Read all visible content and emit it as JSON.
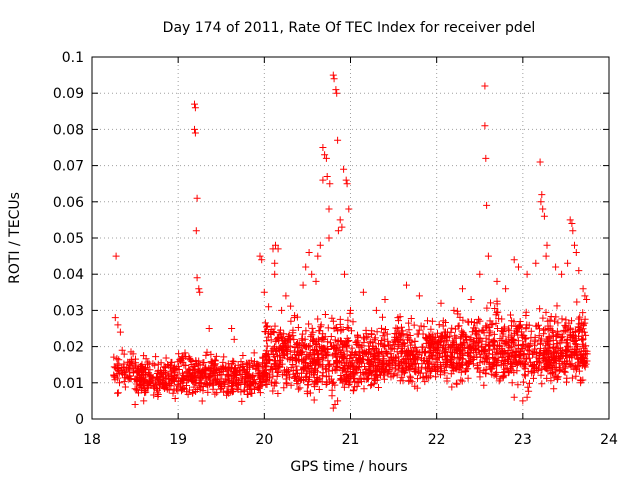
{
  "chart_data": {
    "type": "scatter",
    "title": "Day 174 of 2011, Rate Of TEC Index for receiver pdel",
    "xlabel": "GPS time / hours",
    "ylabel": "ROTI / TECUs",
    "xlim": [
      18,
      24
    ],
    "ylim": [
      0,
      0.1
    ],
    "xticks": [
      18,
      19,
      20,
      21,
      22,
      23,
      24
    ],
    "xtick_labels": [
      "18",
      "19",
      "20",
      "21",
      "22",
      "23",
      "24"
    ],
    "yticks": [
      0,
      0.01,
      0.02,
      0.03,
      0.04,
      0.05,
      0.06,
      0.07,
      0.08,
      0.09,
      0.1
    ],
    "ytick_labels": [
      "0",
      "0.01",
      "0.02",
      "0.03",
      "0.04",
      "0.05",
      "0.06",
      "0.07",
      "0.08",
      "0.09",
      "0.1"
    ],
    "grid": true,
    "marker": "+",
    "color": "#ff0000",
    "series": [
      {
        "name": "ROTI",
        "points": [
          [
            18.28,
            0.045
          ],
          [
            18.27,
            0.028
          ],
          [
            18.3,
            0.026
          ],
          [
            18.33,
            0.024
          ],
          [
            18.35,
            0.019
          ],
          [
            19.19,
            0.087
          ],
          [
            19.2,
            0.086
          ],
          [
            19.19,
            0.08
          ],
          [
            19.2,
            0.079
          ],
          [
            19.22,
            0.061
          ],
          [
            19.21,
            0.052
          ],
          [
            19.22,
            0.039
          ],
          [
            19.24,
            0.036
          ],
          [
            19.25,
            0.035
          ],
          [
            19.36,
            0.025
          ],
          [
            19.62,
            0.025
          ],
          [
            19.65,
            0.022
          ],
          [
            19.95,
            0.045
          ],
          [
            19.97,
            0.044
          ],
          [
            20.0,
            0.035
          ],
          [
            20.05,
            0.031
          ],
          [
            20.1,
            0.047
          ],
          [
            20.13,
            0.048
          ],
          [
            20.16,
            0.047
          ],
          [
            20.12,
            0.043
          ],
          [
            20.12,
            0.04
          ],
          [
            20.2,
            0.03
          ],
          [
            20.25,
            0.034
          ],
          [
            20.35,
            0.028
          ],
          [
            20.45,
            0.037
          ],
          [
            20.48,
            0.042
          ],
          [
            20.52,
            0.046
          ],
          [
            20.55,
            0.04
          ],
          [
            20.6,
            0.038
          ],
          [
            20.62,
            0.045
          ],
          [
            20.65,
            0.048
          ],
          [
            20.68,
            0.075
          ],
          [
            20.7,
            0.073
          ],
          [
            20.72,
            0.072
          ],
          [
            20.73,
            0.067
          ],
          [
            20.76,
            0.065
          ],
          [
            20.68,
            0.066
          ],
          [
            20.75,
            0.058
          ],
          [
            20.75,
            0.05
          ],
          [
            20.8,
            0.095
          ],
          [
            20.81,
            0.094
          ],
          [
            20.83,
            0.091
          ],
          [
            20.84,
            0.09
          ],
          [
            20.85,
            0.077
          ],
          [
            20.88,
            0.055
          ],
          [
            20.9,
            0.053
          ],
          [
            20.86,
            0.052
          ],
          [
            20.92,
            0.069
          ],
          [
            20.95,
            0.066
          ],
          [
            20.96,
            0.065
          ],
          [
            20.98,
            0.058
          ],
          [
            20.93,
            0.04
          ],
          [
            21.0,
            0.03
          ],
          [
            21.15,
            0.035
          ],
          [
            21.3,
            0.03
          ],
          [
            21.4,
            0.033
          ],
          [
            21.55,
            0.028
          ],
          [
            21.65,
            0.037
          ],
          [
            21.8,
            0.034
          ],
          [
            21.95,
            0.027
          ],
          [
            22.05,
            0.032
          ],
          [
            22.2,
            0.03
          ],
          [
            22.3,
            0.036
          ],
          [
            22.4,
            0.033
          ],
          [
            22.5,
            0.04
          ],
          [
            22.56,
            0.092
          ],
          [
            22.56,
            0.081
          ],
          [
            22.57,
            0.072
          ],
          [
            22.58,
            0.059
          ],
          [
            22.6,
            0.045
          ],
          [
            22.7,
            0.038
          ],
          [
            22.8,
            0.036
          ],
          [
            22.9,
            0.044
          ],
          [
            22.95,
            0.042
          ],
          [
            23.05,
            0.04
          ],
          [
            23.15,
            0.043
          ],
          [
            23.2,
            0.071
          ],
          [
            23.22,
            0.062
          ],
          [
            23.21,
            0.06
          ],
          [
            23.23,
            0.058
          ],
          [
            23.25,
            0.056
          ],
          [
            23.28,
            0.048
          ],
          [
            23.27,
            0.045
          ],
          [
            23.38,
            0.042
          ],
          [
            23.45,
            0.04
          ],
          [
            23.52,
            0.043
          ],
          [
            23.55,
            0.055
          ],
          [
            23.57,
            0.054
          ],
          [
            23.58,
            0.052
          ],
          [
            23.6,
            0.048
          ],
          [
            23.62,
            0.046
          ],
          [
            23.65,
            0.041
          ],
          [
            23.7,
            0.036
          ],
          [
            23.72,
            0.034
          ],
          [
            23.74,
            0.033
          ],
          [
            20.8,
            0.003
          ],
          [
            20.82,
            0.004
          ],
          [
            20.85,
            0.005
          ],
          [
            18.5,
            0.004
          ],
          [
            18.6,
            0.005
          ],
          [
            23.0,
            0.005
          ],
          [
            23.05,
            0.006
          ],
          [
            22.9,
            0.006
          ]
        ],
        "band_density": [
          {
            "x_range": [
              18.25,
              18.5
            ],
            "y_range": [
              0.005,
              0.022
            ],
            "count": 60
          },
          {
            "x_range": [
              18.5,
              19.0
            ],
            "y_range": [
              0.004,
              0.021
            ],
            "count": 200
          },
          {
            "x_range": [
              19.0,
              19.5
            ],
            "y_range": [
              0.004,
              0.022
            ],
            "count": 200
          },
          {
            "x_range": [
              19.5,
              20.0
            ],
            "y_range": [
              0.004,
              0.021
            ],
            "count": 180
          },
          {
            "x_range": [
              20.0,
              20.5
            ],
            "y_range": [
              0.004,
              0.033
            ],
            "count": 240
          },
          {
            "x_range": [
              20.5,
              21.0
            ],
            "y_range": [
              0.003,
              0.034
            ],
            "count": 260
          },
          {
            "x_range": [
              21.0,
              21.5
            ],
            "y_range": [
              0.005,
              0.03
            ],
            "count": 240
          },
          {
            "x_range": [
              21.5,
              22.0
            ],
            "y_range": [
              0.006,
              0.032
            ],
            "count": 240
          },
          {
            "x_range": [
              22.0,
              22.5
            ],
            "y_range": [
              0.006,
              0.034
            ],
            "count": 240
          },
          {
            "x_range": [
              22.5,
              23.0
            ],
            "y_range": [
              0.006,
              0.036
            ],
            "count": 240
          },
          {
            "x_range": [
              23.0,
              23.5
            ],
            "y_range": [
              0.005,
              0.036
            ],
            "count": 240
          },
          {
            "x_range": [
              23.5,
              23.75
            ],
            "y_range": [
              0.006,
              0.035
            ],
            "count": 130
          }
        ]
      }
    ]
  }
}
